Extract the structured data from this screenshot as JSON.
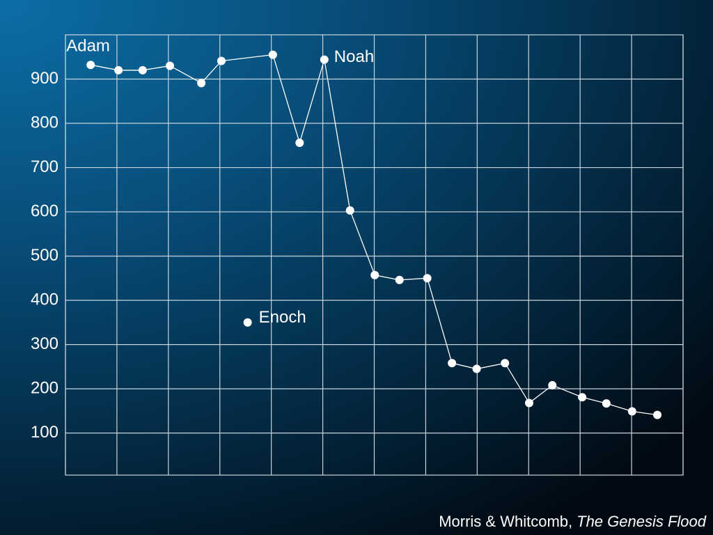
{
  "chart_data": {
    "type": "line",
    "xlim": [
      0,
      12
    ],
    "xticks": [
      0,
      1,
      2,
      3,
      4,
      5,
      6,
      7,
      8,
      9,
      10,
      11,
      12
    ],
    "ylim": [
      5,
      1000
    ],
    "yticks": [
      100,
      200,
      300,
      400,
      500,
      600,
      700,
      800,
      900
    ],
    "grid": true,
    "series": [
      {
        "color": "#ffffff",
        "x": [
          0.49,
          1.03,
          1.5,
          2.03,
          2.64,
          3.03,
          4.03,
          4.55,
          5.03,
          5.53,
          6.01,
          6.49,
          7.03,
          7.51,
          7.99,
          8.54,
          9.01,
          9.46,
          10.04,
          10.51,
          11.01,
          11.5
        ],
        "values": [
          932,
          920,
          920,
          930,
          891,
          941,
          955,
          756,
          944,
          603,
          457,
          446,
          450,
          258,
          245,
          258,
          168,
          208,
          181,
          167,
          149,
          141
        ]
      },
      {
        "color": "#ffffff",
        "x": [
          3.54
        ],
        "values": [
          350
        ]
      }
    ],
    "annotations": [
      "Adam",
      "Noah",
      "Enoch"
    ],
    "source": [
      "Morris & Whitcomb,",
      "The Genesis Flood"
    ]
  }
}
